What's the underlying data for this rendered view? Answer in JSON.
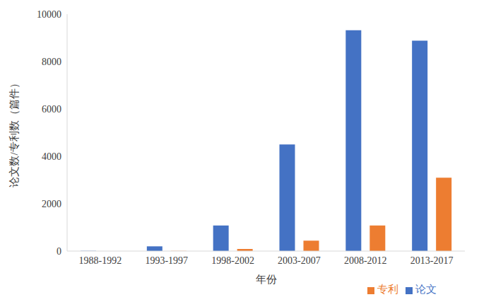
{
  "chart_data": {
    "type": "bar",
    "x_label": "年份",
    "y_label": "论文数/专利数（篇件）",
    "categories": [
      "1988-1992",
      "1993-1997",
      "1998-2002",
      "2003-2007",
      "2008-2012",
      "2013-2017"
    ],
    "series": [
      {
        "name": "论文",
        "color": "#4472c4",
        "values": [
          10,
          200,
          1080,
          4500,
          9320,
          8880
        ]
      },
      {
        "name": "专利",
        "color": "#ed7d31",
        "values": [
          0,
          5,
          90,
          440,
          1080,
          3100
        ]
      }
    ],
    "ylim": [
      0,
      10000
    ],
    "yticks": [
      0,
      2000,
      4000,
      6000,
      8000,
      10000
    ],
    "grid": false,
    "legend": "bottom-right"
  }
}
